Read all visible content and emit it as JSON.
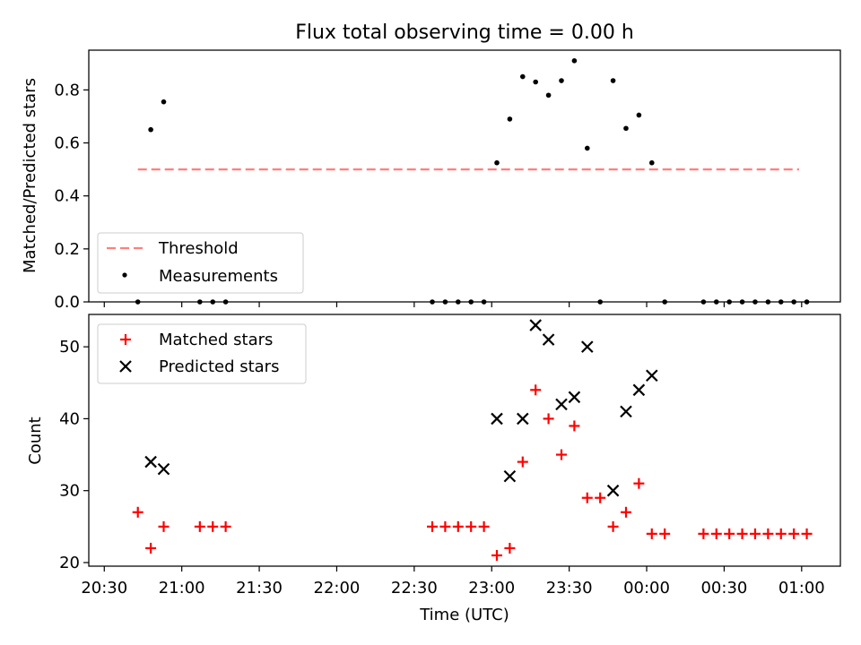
{
  "chart_data": [
    {
      "type": "scatter",
      "title": "Flux total observing time = 0.00 h",
      "ylabel": "Matched/Predicted stars",
      "xlabel": "",
      "x_unit": "time (UTC)",
      "ylim": [
        0,
        0.95
      ],
      "yticks": [
        "0.0",
        "0.2",
        "0.4",
        "0.6",
        "0.8"
      ],
      "legend": {
        "placement": "lower-left",
        "entries": [
          "Threshold",
          "Measurements"
        ]
      },
      "threshold": {
        "name": "Threshold",
        "value": 0.5,
        "x_range": [
          "20:43",
          "00:59"
        ],
        "color": "#ff7f7f",
        "style": "dashed"
      },
      "series": [
        {
          "name": "Measurements",
          "color": "#000000",
          "points": [
            [
              "20:43",
              0.0
            ],
            [
              "20:48",
              0.65
            ],
            [
              "20:53",
              0.755
            ],
            [
              "21:07",
              0.0
            ],
            [
              "21:12",
              0.0
            ],
            [
              "21:17",
              0.0
            ],
            [
              "22:37",
              0.0
            ],
            [
              "22:42",
              0.0
            ],
            [
              "22:47",
              0.0
            ],
            [
              "22:52",
              0.0
            ],
            [
              "22:57",
              0.0
            ],
            [
              "23:02",
              0.525
            ],
            [
              "23:07",
              0.69
            ],
            [
              "23:12",
              0.85
            ],
            [
              "23:17",
              0.83
            ],
            [
              "23:22",
              0.78
            ],
            [
              "23:27",
              0.835
            ],
            [
              "23:32",
              0.91
            ],
            [
              "23:37",
              0.58
            ],
            [
              "23:42",
              0.0
            ],
            [
              "23:47",
              0.835
            ],
            [
              "23:52",
              0.655
            ],
            [
              "23:57",
              0.705
            ],
            [
              "00:02",
              0.525
            ],
            [
              "00:07",
              0.0
            ],
            [
              "00:22",
              0.0
            ],
            [
              "00:27",
              0.0
            ],
            [
              "00:32",
              0.0
            ],
            [
              "00:37",
              0.0
            ],
            [
              "00:42",
              0.0
            ],
            [
              "00:47",
              0.0
            ],
            [
              "00:52",
              0.0
            ],
            [
              "00:57",
              0.0
            ],
            [
              "01:02",
              0.0
            ]
          ]
        }
      ]
    },
    {
      "type": "scatter",
      "title": "",
      "ylabel": "Count",
      "xlabel": "Time (UTC)",
      "ylim": [
        19.5,
        54.5
      ],
      "yticks": [
        "20",
        "30",
        "40",
        "50"
      ],
      "xticks": [
        "20:30",
        "21:00",
        "21:30",
        "22:00",
        "22:30",
        "23:00",
        "23:30",
        "00:00",
        "00:30",
        "01:00"
      ],
      "legend": {
        "placement": "upper-left",
        "entries": [
          "Matched stars",
          "Predicted stars"
        ]
      },
      "series": [
        {
          "name": "Matched stars",
          "marker": "plus",
          "color": "#ff0000",
          "points": [
            [
              "20:43",
              27
            ],
            [
              "20:48",
              22
            ],
            [
              "20:53",
              25
            ],
            [
              "21:07",
              25
            ],
            [
              "21:12",
              25
            ],
            [
              "21:17",
              25
            ],
            [
              "22:37",
              25
            ],
            [
              "22:42",
              25
            ],
            [
              "22:47",
              25
            ],
            [
              "22:52",
              25
            ],
            [
              "22:57",
              25
            ],
            [
              "23:02",
              21
            ],
            [
              "23:07",
              22
            ],
            [
              "23:12",
              34
            ],
            [
              "23:17",
              44
            ],
            [
              "23:22",
              40
            ],
            [
              "23:27",
              35
            ],
            [
              "23:32",
              39
            ],
            [
              "23:37",
              29
            ],
            [
              "23:42",
              29
            ],
            [
              "23:47",
              25
            ],
            [
              "23:52",
              27
            ],
            [
              "23:57",
              31
            ],
            [
              "00:02",
              24
            ],
            [
              "00:07",
              24
            ],
            [
              "00:22",
              24
            ],
            [
              "00:27",
              24
            ],
            [
              "00:32",
              24
            ],
            [
              "00:37",
              24
            ],
            [
              "00:42",
              24
            ],
            [
              "00:47",
              24
            ],
            [
              "00:52",
              24
            ],
            [
              "00:57",
              24
            ],
            [
              "01:02",
              24
            ]
          ]
        },
        {
          "name": "Predicted stars",
          "marker": "x",
          "color": "#000000",
          "points": [
            [
              "20:48",
              34
            ],
            [
              "20:53",
              33
            ],
            [
              "23:02",
              40
            ],
            [
              "23:07",
              32
            ],
            [
              "23:12",
              40
            ],
            [
              "23:17",
              53
            ],
            [
              "23:22",
              51
            ],
            [
              "23:27",
              42
            ],
            [
              "23:32",
              43
            ],
            [
              "23:37",
              50
            ],
            [
              "23:47",
              30
            ],
            [
              "23:52",
              41
            ],
            [
              "23:57",
              44
            ],
            [
              "00:02",
              46
            ]
          ]
        }
      ]
    }
  ]
}
